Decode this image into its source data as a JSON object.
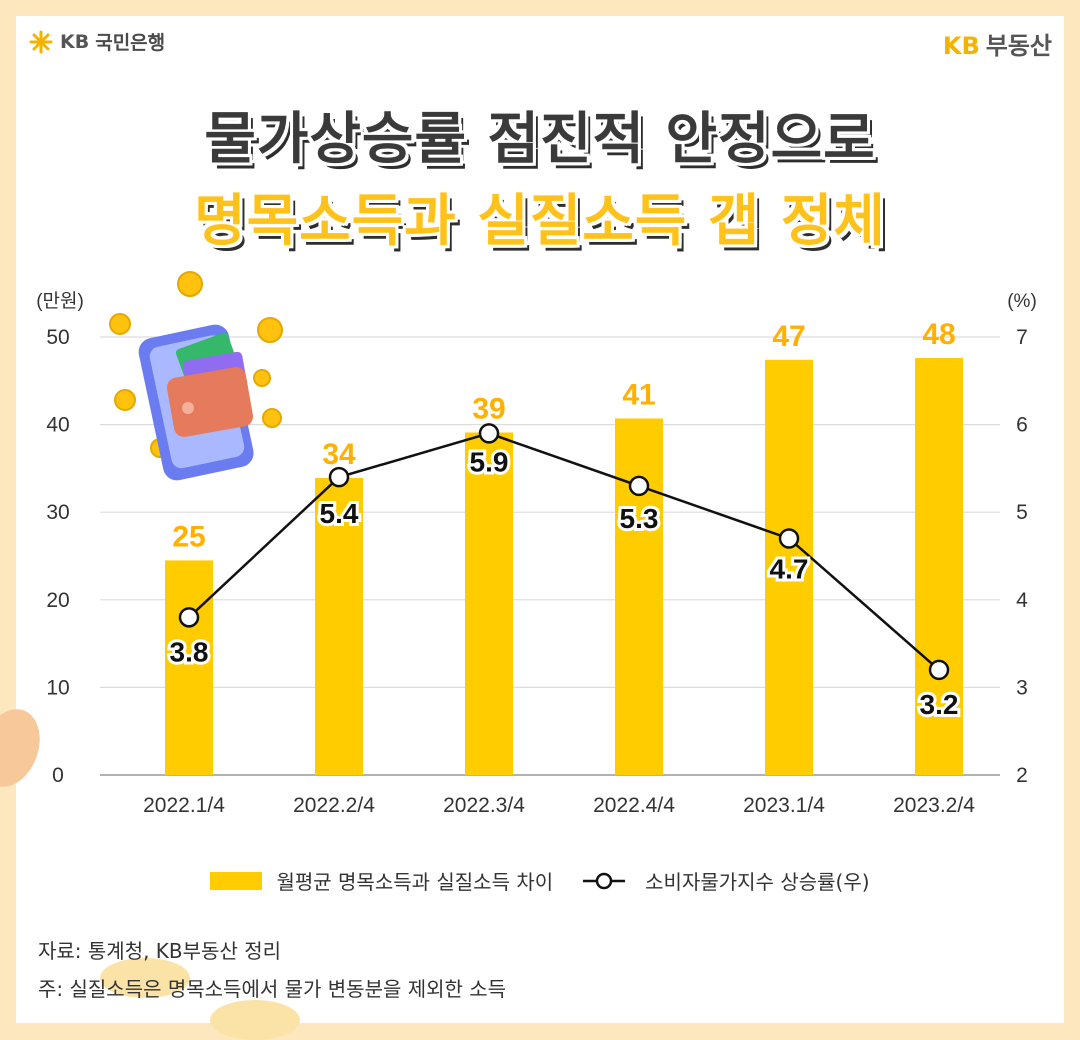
{
  "brand": {
    "left_kb": "KB",
    "left_name": "국민은행",
    "right_kb": "KB",
    "right_name": "부동산"
  },
  "title": {
    "line1": "물가상승률 점진적 안정으로",
    "line2": "명목소득과 실질소득 갭 정체"
  },
  "colors": {
    "bar": "#ffcc00",
    "bar_label": "#ffb000",
    "line": "#111111",
    "accent": "#f3b300"
  },
  "chart_data": {
    "type": "bar",
    "categories": [
      "2022.1/4",
      "2022.2/4",
      "2022.3/4",
      "2022.4/4",
      "2023.1/4",
      "2023.2/4"
    ],
    "series": [
      {
        "name": "월평균 명목소득과 실질소득 차이",
        "type": "bar",
        "axis": "left",
        "values": [
          24.5,
          33.9,
          39.1,
          40.7,
          47.4,
          47.6
        ],
        "labels": [
          "25",
          "34",
          "39",
          "41",
          "47",
          "48"
        ]
      },
      {
        "name": "소비자물가지수 상승률(우)",
        "type": "line",
        "axis": "right",
        "values": [
          3.8,
          5.4,
          5.9,
          5.3,
          4.7,
          3.2
        ],
        "labels": [
          "3.8",
          "5.4",
          "5.9",
          "5.3",
          "4.7",
          "3.2"
        ]
      }
    ],
    "y_left": {
      "unit": "(만원)",
      "range": [
        0,
        50
      ],
      "ticks": [
        "0",
        "10",
        "20",
        "30",
        "40",
        "50"
      ]
    },
    "y_right": {
      "unit": "(%)",
      "range": [
        2,
        7
      ],
      "ticks": [
        "2",
        "3",
        "4",
        "5",
        "6",
        "7"
      ]
    },
    "grid": true
  },
  "legend": {
    "bar": "월평균 명목소득과 실질소득 차이",
    "line": "소비자물가지수 상승률(우)"
  },
  "notes": {
    "source": "자료: 통계청, KB부동산 정리",
    "footnote": "주: 실질소득은 명목소득에서 물가 변동분을 제외한 소득"
  }
}
